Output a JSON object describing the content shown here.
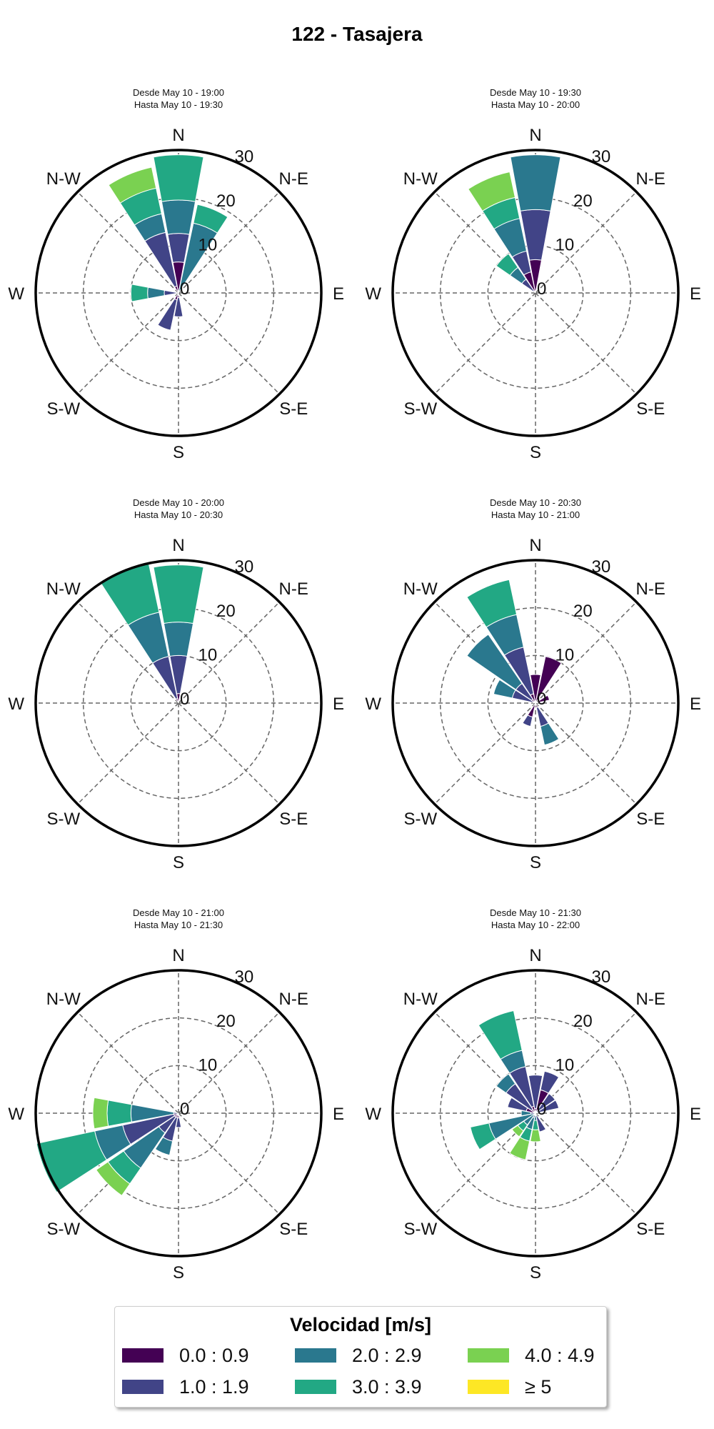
{
  "title": "122 - Tasajera",
  "legend": {
    "title": "Velocidad [m/s]",
    "items": [
      {
        "label": "0.0 : 0.9",
        "color": "#440154"
      },
      {
        "label": "1.0 : 1.9",
        "color": "#414487"
      },
      {
        "label": "2.0 : 2.9",
        "color": "#2a788e"
      },
      {
        "label": "3.0 : 3.9",
        "color": "#22a884"
      },
      {
        "label": "4.0 : 4.9",
        "color": "#7ad151"
      },
      {
        "label": "≥  5",
        "color": "#fde725"
      }
    ]
  },
  "chart_data": [
    {
      "type": "windrose",
      "subtitle": [
        "Desde May 10 - 19:00",
        "Hasta May 10 - 19:30"
      ],
      "direction_labels": [
        "N",
        "N-E",
        "E",
        "S-E",
        "S",
        "S-W",
        "W",
        "N-W"
      ],
      "radial_ticks": [
        0,
        10,
        20,
        30
      ],
      "rmax": 30,
      "sectors": [
        {
          "dir": 0,
          "stacks": [
            0,
            6.5,
            12.5,
            19.5,
            29
          ]
        },
        {
          "dir": 22.5,
          "stacks": [
            0,
            0,
            0,
            15,
            19
          ]
        },
        {
          "dir": 180,
          "stacks": [
            0,
            1,
            5
          ]
        },
        {
          "dir": 202.5,
          "stacks": [
            0,
            1.5,
            8
          ]
        },
        {
          "dir": 270,
          "stacks": [
            0,
            0,
            3,
            6.5,
            10
          ]
        },
        {
          "dir": 337.5,
          "stacks": [
            0,
            1.5,
            13,
            17,
            22.5,
            27
          ]
        }
      ]
    },
    {
      "type": "windrose",
      "subtitle": [
        "Desde May 10 - 19:30",
        "Hasta May 10 - 20:00"
      ],
      "direction_labels": [
        "N",
        "N-E",
        "E",
        "S-E",
        "S",
        "S-W",
        "W",
        "N-W"
      ],
      "radial_ticks": [
        0,
        10,
        20,
        30
      ],
      "rmax": 30,
      "sectors": [
        {
          "dir": 0,
          "stacks": [
            0,
            7,
            17.5,
            29
          ]
        },
        {
          "dir": 315,
          "stacks": [
            0,
            0,
            3.5,
            6.5,
            10
          ]
        },
        {
          "dir": 337.5,
          "stacks": [
            0,
            4.5,
            9,
            16,
            20.5,
            26
          ]
        }
      ]
    },
    {
      "type": "windrose",
      "subtitle": [
        "Desde May 10 - 20:00",
        "Hasta May 10 - 20:30"
      ],
      "direction_labels": [
        "N",
        "N-E",
        "E",
        "S-E",
        "S",
        "S-W",
        "W",
        "N-W"
      ],
      "radial_ticks": [
        0,
        10,
        20,
        30
      ],
      "rmax": 30,
      "sectors": [
        {
          "dir": 0,
          "stacks": [
            0,
            2,
            10,
            17,
            29
          ]
        },
        {
          "dir": 337.5,
          "stacks": [
            0,
            1,
            10,
            19.5,
            30
          ]
        }
      ]
    },
    {
      "type": "windrose",
      "subtitle": [
        "Desde May 10 - 20:30",
        "Hasta May 10 - 21:00"
      ],
      "direction_labels": [
        "N",
        "N-E",
        "E",
        "S-E",
        "S",
        "S-W",
        "W",
        "N-W"
      ],
      "radial_ticks": [
        0,
        10,
        20,
        30
      ],
      "rmax": 30,
      "sectors": [
        {
          "dir": 0,
          "stacks": [
            0,
            6
          ]
        },
        {
          "dir": 22.5,
          "stacks": [
            0,
            10
          ]
        },
        {
          "dir": 67.5,
          "stacks": [
            0,
            3
          ]
        },
        {
          "dir": 157.5,
          "stacks": [
            0,
            1,
            5,
            9
          ]
        },
        {
          "dir": 202.5,
          "stacks": [
            0,
            3,
            5
          ]
        },
        {
          "dir": 292.5,
          "stacks": [
            0,
            0.5,
            5,
            9
          ]
        },
        {
          "dir": 315,
          "stacks": [
            0,
            1,
            5,
            17.5
          ]
        },
        {
          "dir": 337.5,
          "stacks": [
            0,
            2,
            12,
            19,
            26.5
          ]
        }
      ]
    },
    {
      "type": "windrose",
      "subtitle": [
        "Desde May 10 - 21:00",
        "Hasta May 10 - 21:30"
      ],
      "direction_labels": [
        "N",
        "N-E",
        "E",
        "S-E",
        "S",
        "S-W",
        "W",
        "N-W"
      ],
      "radial_ticks": [
        0,
        10,
        20,
        30
      ],
      "rmax": 30,
      "sectors": [
        {
          "dir": 180,
          "stacks": [
            0,
            1,
            3
          ]
        },
        {
          "dir": 202.5,
          "stacks": [
            0,
            1,
            6,
            9
          ]
        },
        {
          "dir": 225,
          "stacks": [
            0,
            1,
            5,
            14,
            18,
            21
          ]
        },
        {
          "dir": 247.5,
          "stacks": [
            0,
            1,
            12,
            18,
            30.5
          ]
        },
        {
          "dir": 270,
          "stacks": [
            0,
            0,
            1,
            10,
            15,
            18
          ]
        }
      ]
    },
    {
      "type": "windrose",
      "subtitle": [
        "Desde May 10 - 21:30",
        "Hasta May 10 - 22:00"
      ],
      "direction_labels": [
        "N",
        "N-E",
        "E",
        "S-E",
        "S",
        "S-W",
        "W",
        "N-W"
      ],
      "radial_ticks": [
        0,
        10,
        20,
        30
      ],
      "rmax": 30,
      "sectors": [
        {
          "dir": 0,
          "stacks": [
            0,
            1.5,
            5,
            8
          ]
        },
        {
          "dir": 22.5,
          "stacks": [
            0,
            5,
            9
          ]
        },
        {
          "dir": 45,
          "stacks": [
            0,
            0,
            5
          ]
        },
        {
          "dir": 67.5,
          "stacks": [
            0,
            0,
            5
          ]
        },
        {
          "dir": 157.5,
          "stacks": [
            0,
            0,
            4
          ]
        },
        {
          "dir": 180,
          "stacks": [
            0,
            0,
            0.5,
            1.5,
            3.5,
            6
          ]
        },
        {
          "dir": 202.5,
          "stacks": [
            0,
            0,
            1,
            3.5,
            6,
            10
          ]
        },
        {
          "dir": 225,
          "stacks": [
            0,
            0,
            0.5,
            3,
            4.5,
            6
          ]
        },
        {
          "dir": 247.5,
          "stacks": [
            0,
            0,
            0,
            10,
            14
          ]
        },
        {
          "dir": 270,
          "stacks": [
            0,
            0,
            1,
            3
          ]
        },
        {
          "dir": 292.5,
          "stacks": [
            0,
            2,
            6
          ]
        },
        {
          "dir": 315,
          "stacks": [
            0,
            1,
            7.5,
            10
          ]
        },
        {
          "dir": 337.5,
          "stacks": [
            0,
            1.5,
            10,
            13.5,
            22
          ]
        },
        {
          "dir": 360,
          "stacks": [
            0,
            1,
            8
          ]
        }
      ]
    }
  ]
}
